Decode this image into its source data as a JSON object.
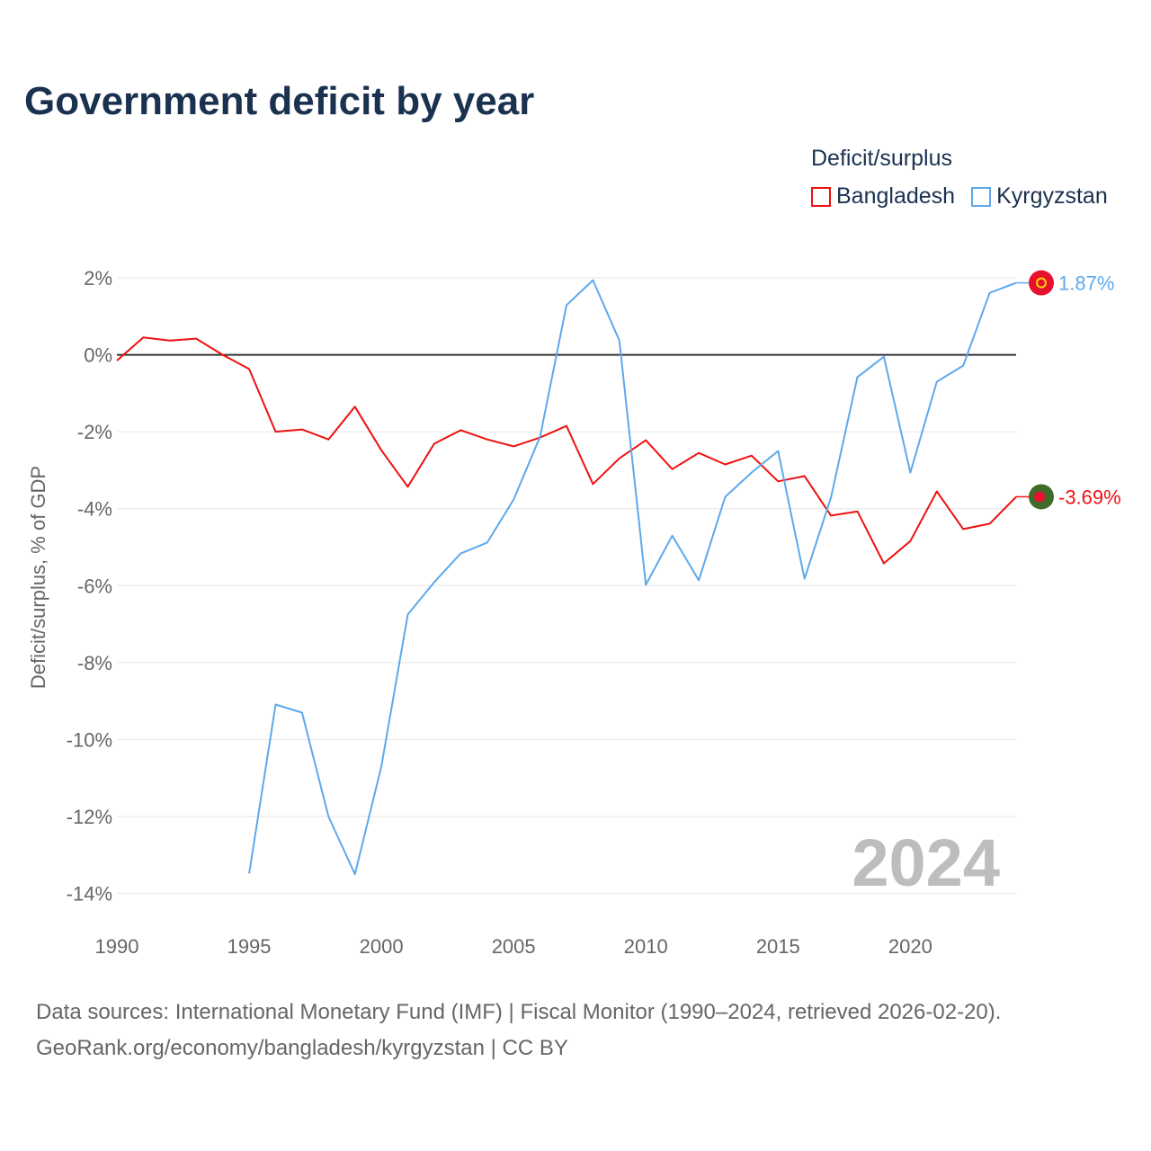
{
  "chart_data": {
    "type": "line",
    "title": "Government deficit by year",
    "ylabel": "Deficit/surplus, % of GDP",
    "xlabel": "",
    "legend_title": "Deficit/surplus",
    "legend_position": "top-right",
    "xlim": [
      1990,
      2024
    ],
    "ylim": [
      -14,
      2
    ],
    "x_ticks": [
      1990,
      1995,
      2000,
      2005,
      2010,
      2015,
      2020
    ],
    "x_tick_labels": [
      "1990",
      "1995",
      "2000",
      "2005",
      "2010",
      "2015",
      "2020"
    ],
    "y_ticks": [
      2,
      0,
      -2,
      -4,
      -6,
      -8,
      -10,
      -12,
      -14
    ],
    "y_tick_labels": [
      "2%",
      "0%",
      "-2%",
      "-4%",
      "-6%",
      "-8%",
      "-10%",
      "-12%",
      "-14%"
    ],
    "grid": true,
    "year_watermark": "2024",
    "series": [
      {
        "name": "Bangladesh",
        "color": "#ee1111",
        "flag": "bangladesh-flag",
        "end_label": "-3.69%",
        "x": [
          1990,
          1991,
          1992,
          1993,
          1994,
          1995,
          1996,
          1997,
          1998,
          1999,
          2000,
          2001,
          2002,
          2003,
          2004,
          2005,
          2006,
          2007,
          2008,
          2009,
          2010,
          2011,
          2012,
          2013,
          2014,
          2015,
          2016,
          2017,
          2018,
          2019,
          2020,
          2021,
          2022,
          2023,
          2024
        ],
        "values": [
          -0.15,
          0.45,
          0.37,
          0.42,
          0.0,
          -0.37,
          -2.0,
          -1.94,
          -2.2,
          -1.35,
          -2.48,
          -3.43,
          -2.31,
          -1.96,
          -2.2,
          -2.38,
          -2.15,
          -1.85,
          -3.36,
          -2.69,
          -2.22,
          -2.97,
          -2.55,
          -2.85,
          -2.62,
          -3.29,
          -3.15,
          -4.18,
          -4.07,
          -5.42,
          -4.84,
          -3.55,
          -4.53,
          -4.39,
          -3.69
        ]
      },
      {
        "name": "Kyrgyzstan",
        "color": "#5ea8ec",
        "flag": "kyrgyzstan-flag",
        "end_label": "1.87%",
        "x": [
          1995,
          1996,
          1997,
          1998,
          1999,
          2000,
          2001,
          2002,
          2003,
          2004,
          2005,
          2006,
          2007,
          2008,
          2009,
          2010,
          2011,
          2012,
          2013,
          2014,
          2015,
          2016,
          2017,
          2018,
          2019,
          2020,
          2021,
          2022,
          2023,
          2024
        ],
        "values": [
          -13.48,
          -9.09,
          -9.3,
          -12.0,
          -13.5,
          -10.7,
          -6.75,
          -5.91,
          -5.16,
          -4.88,
          -3.76,
          -2.13,
          1.29,
          1.94,
          0.37,
          -5.98,
          -4.7,
          -5.86,
          -3.69,
          -3.06,
          -2.5,
          -5.82,
          -3.71,
          -0.58,
          -0.05,
          -3.06,
          -0.7,
          -0.28,
          1.61,
          1.87
        ]
      }
    ]
  },
  "footer": {
    "source_line": "Data sources: International Monetary Fund (IMF) | Fiscal Monitor (1990–2024, retrieved 2026-02-20).",
    "attribution_line": "GeoRank.org/economy/bangladesh/kyrgyzstan | CC BY"
  }
}
